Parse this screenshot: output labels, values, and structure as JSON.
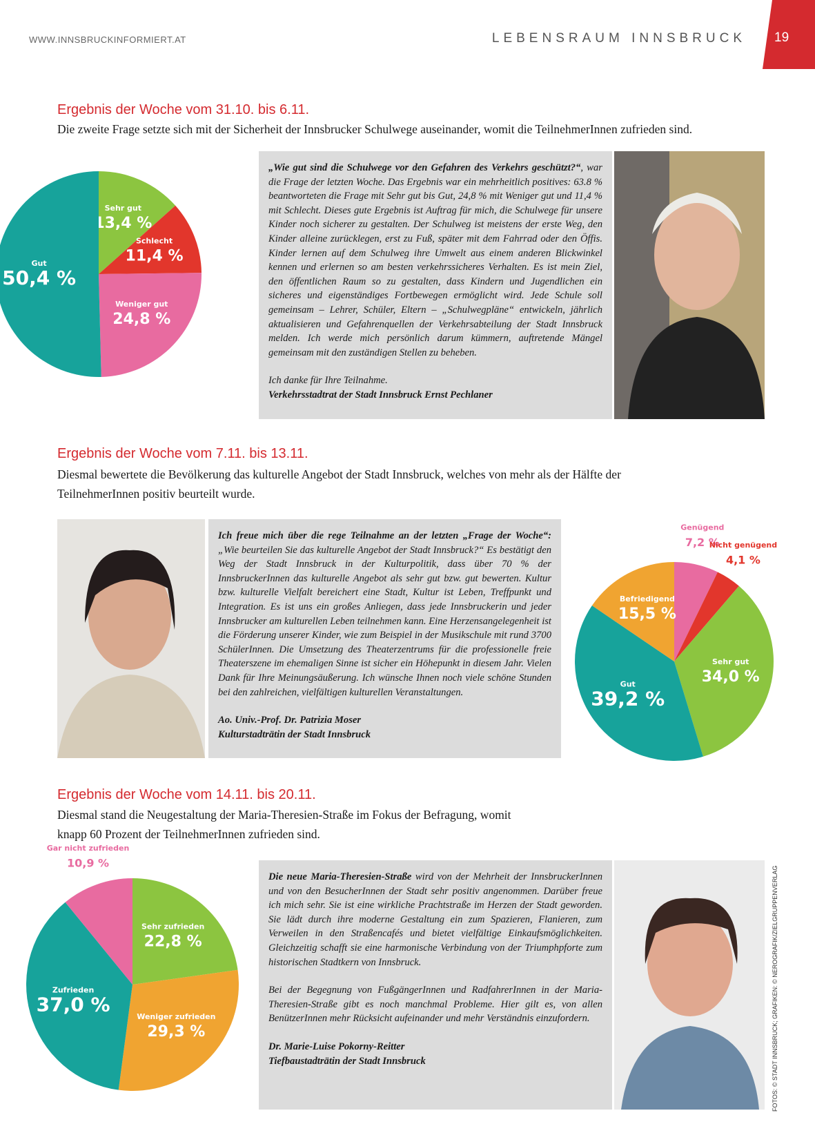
{
  "header": {
    "url": "WWW.INNSBRUCKINFORMIERT.AT",
    "section": "LEBENSRAUM INNSBRUCK",
    "page": "19"
  },
  "sections": [
    {
      "heading": "Ergebnis der Woche vom 31.10. bis 6.11.",
      "intro": "Die zweite Frage setzte sich mit der Sicherheit der Innsbrucker Schulwege auseinander, womit die TeilnehmerInnen zufrieden sind.",
      "quote": {
        "lead": "„Wie gut sind die Schulwege vor den Gefahren des Verkehrs geschützt?“",
        "text": ", war die Frage der letzten Woche. Das Ergebnis war ein mehrheitlich positives: 63.8 % beantworteten die Frage mit Sehr gut bis Gut, 24,8 % mit Weniger gut und 11,4 % mit Schlecht. Dieses gute Ergebnis ist Auftrag für mich, die Schulwege für unsere Kinder noch sicherer zu gestalten. Der Schulweg ist meistens der erste Weg, den Kinder alleine zurücklegen, erst zu Fuß, später mit dem Fahrrad oder den Öffis. Kinder lernen auf dem Schulweg ihre Umwelt aus einem anderen Blickwinkel kennen und erlernen so am besten verkehrssicheres Verhalten. Es ist mein Ziel, den öffentlichen Raum so zu gestalten, dass Kindern und Jugendlichen ein sicheres und eigenständiges Fortbewegen ermöglicht wird. Jede Schule soll gemeinsam – Lehrer, Schüler, Eltern – „Schulwegpläne“ entwickeln, jährlich aktualisieren und Gefahrenquellen der Verkehrsabteilung der Stadt Innsbruck melden. Ich werde mich persönlich darum kümmern, auftretende Mängel gemeinsam mit den zuständigen Stellen zu beheben.",
        "closing": "Ich danke für Ihre Teilnahme.",
        "signature": [
          "Verkehrsstadtrat der Stadt Innsbruck Ernst Pechlaner"
        ]
      }
    },
    {
      "heading": "Ergebnis der Woche vom 7.11. bis 13.11.",
      "intro": "Diesmal bewertete die Bevölkerung das kulturelle Angebot der Stadt Innsbruck, welches von mehr als der Hälfte der TeilnehmerInnen positiv beurteilt wurde.",
      "quote": {
        "lead": "Ich freue mich über die rege Teilnahme an der letzten „Frage der Woche“:",
        "text": " „Wie beurteilen Sie das kulturelle Angebot der Stadt Innsbruck?“ Es bestätigt den Weg der Stadt Innsbruck in der Kulturpolitik, dass über 70 % der InnsbruckerInnen das kulturelle Angebot als sehr gut bzw. gut bewerten. Kultur bzw. kulturelle Vielfalt bereichert eine Stadt, Kultur ist Leben, Treffpunkt und Integration. Es ist uns ein großes Anliegen, dass jede Innsbruckerin und jeder Innsbrucker am kulturellen Leben teilnehmen kann. Eine Herzensangelegenheit ist die Förderung unserer Kinder, wie zum Beispiel in der Musikschule mit rund 3700 SchülerInnen. Die Umsetzung des Theaterzentrums für die professionelle freie Theaterszene im ehemaligen Sinne ist sicher ein Höhepunkt in diesem Jahr. Vielen Dank für Ihre Meinungsäußerung. Ich wünsche Ihnen noch viele schöne Stunden bei den zahlreichen, vielfältigen kulturellen Veranstaltungen.",
        "signature": [
          "Ao. Univ.-Prof. Dr. Patrizia Moser",
          "Kulturstadträtin der Stadt Innsbruck"
        ]
      }
    },
    {
      "heading": "Ergebnis der Woche vom 14.11. bis 20.11.",
      "intro": "Diesmal stand die Neugestaltung der Maria-Theresien-Straße im Fokus der Befragung, womit knapp 60 Prozent der TeilnehmerInnen zufrieden sind.",
      "quote": {
        "lead": "Die neue Maria-Theresien-Straße",
        "text": " wird von der Mehrheit der InnsbruckerInnen und von den BesucherInnen der Stadt sehr positiv angenommen. Darüber freue ich mich sehr. Sie ist eine wirkliche Prachtstraße im Herzen der Stadt geworden. Sie lädt durch ihre moderne Gestaltung ein zum Spazieren, Flanieren, zum Verweilen in den Straßencafés und bietet vielfältige Einkaufsmöglichkeiten. Gleichzeitig schafft sie eine harmonische Verbindung von der Triumphpforte zum historischen Stadtkern von Innsbruck.",
        "closing": "Bei der Begegnung von FußgängerInnen und RadfahrerInnen in der Maria-Theresien-Straße gibt es noch manchmal Probleme. Hier gilt es, von allen BenützerInnen mehr Rücksicht aufeinander und mehr Verständnis einzufordern.",
        "signature": [
          "Dr. Marie-Luise Pokorny-Reitter",
          "Tiefbaustadträtin der Stadt Innsbruck"
        ]
      }
    }
  ],
  "credit": "FOTOS: © STADT INNSBRUCK; GRAFIKEN: © NEROGRAFIK/ZIELGRUPPENVERLAG",
  "chart_data": [
    {
      "type": "pie",
      "categories": [
        "Sehr gut",
        "Schlecht",
        "Weniger gut",
        "Gut"
      ],
      "values": [
        13.4,
        11.4,
        24.8,
        50.4
      ],
      "value_labels": [
        "13,4 %",
        "11,4 %",
        "24,8 %",
        "50,4 %"
      ],
      "colors": [
        "#8cc540",
        "#e2362c",
        "#e86ba0",
        "#17a39b"
      ]
    },
    {
      "type": "pie",
      "categories": [
        "Genügend",
        "Nicht genügend",
        "Sehr gut",
        "Gut",
        "Befriedigend"
      ],
      "values": [
        7.2,
        4.1,
        34.0,
        39.2,
        15.5
      ],
      "value_labels": [
        "7,2 %",
        "4,1 %",
        "34,0 %",
        "39,2 %",
        "15,5 %"
      ],
      "colors": [
        "#e86ba0",
        "#e2362c",
        "#8cc540",
        "#17a39b",
        "#f0a431"
      ]
    },
    {
      "type": "pie",
      "categories": [
        "Sehr zufrieden",
        "Weniger zufrieden",
        "Zufrieden",
        "Gar nicht zufrieden"
      ],
      "values": [
        22.8,
        29.3,
        37.0,
        10.9
      ],
      "value_labels": [
        "22,8 %",
        "29,3 %",
        "37,0 %",
        "10,9 %"
      ],
      "colors": [
        "#8cc540",
        "#f0a431",
        "#17a39b",
        "#e86ba0"
      ]
    }
  ]
}
